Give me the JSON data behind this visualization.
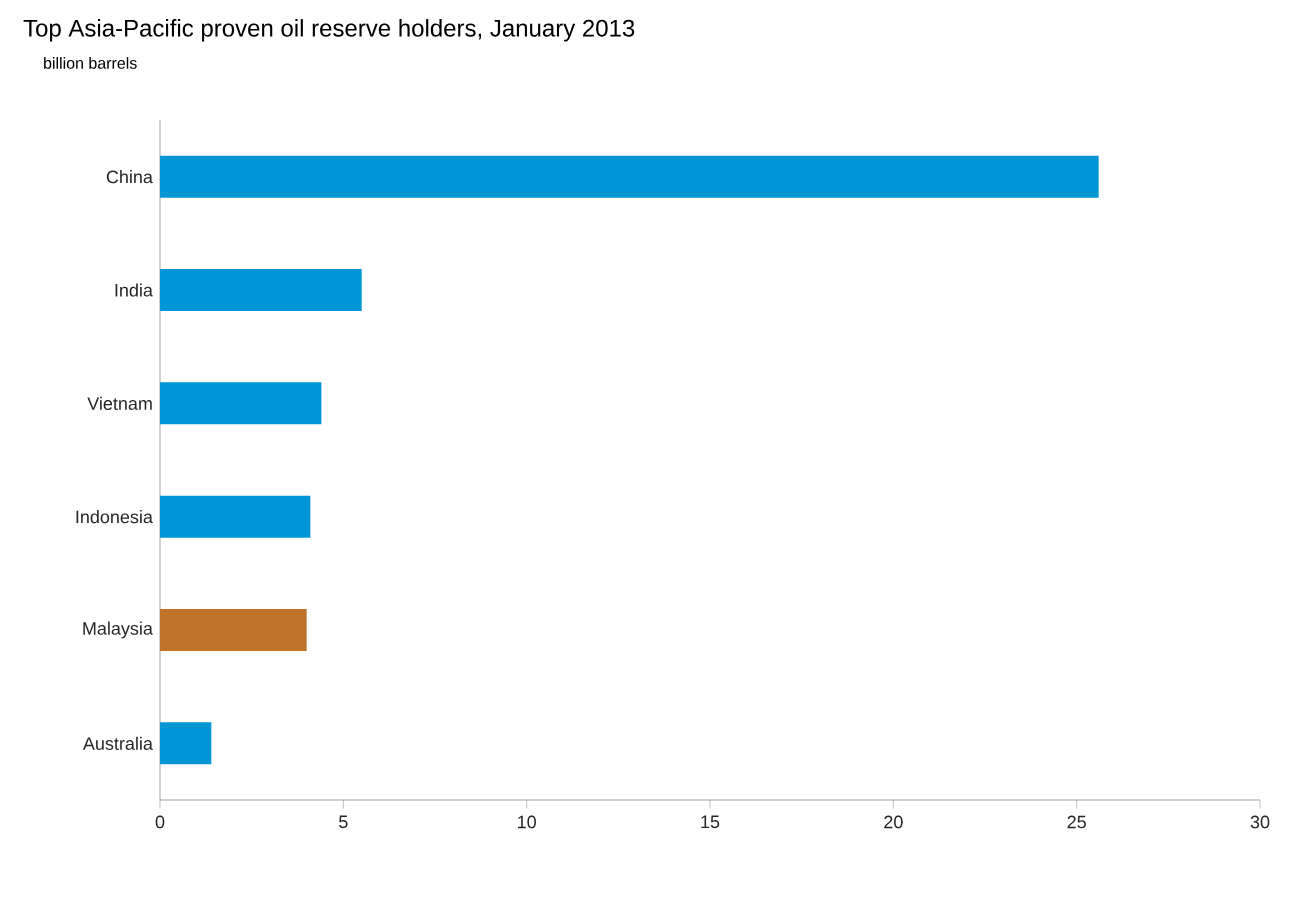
{
  "chart_data": {
    "type": "bar",
    "orientation": "horizontal",
    "title": "Top Asia-Pacific proven oil reserve holders, January 2013",
    "ylabel": "billion barrels",
    "categories": [
      "China",
      "India",
      "Vietnam",
      "Indonesia",
      "Malaysia",
      "Australia"
    ],
    "values": [
      25.6,
      5.5,
      4.4,
      4.1,
      4.0,
      1.4
    ],
    "colors": [
      "#0096d6",
      "#0096d6",
      "#0096d6",
      "#0096d6",
      "#bf722a",
      "#0096d6"
    ],
    "xlim": [
      0,
      30
    ],
    "xticks": [
      0,
      5,
      10,
      15,
      20,
      25,
      30
    ]
  }
}
